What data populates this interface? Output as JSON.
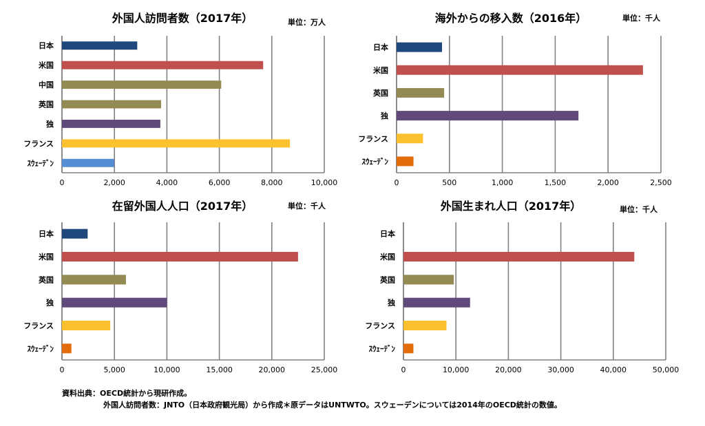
{
  "colors": {
    "日本": "#1F497D",
    "米国": "#C0504D",
    "中国": "#948A54",
    "英国": "#948A54",
    "独": "#604A7B",
    "フランス": "#FCC12E",
    "スウェーデン": "#E46C0A",
    "スウェーデン_visitors": "#558ED5"
  },
  "chart_data": [
    {
      "type": "bar",
      "orientation": "horizontal",
      "title": "外国人訪問者数（2017年）",
      "unit": "単位：万人",
      "categories": [
        "日本",
        "米国",
        "中国",
        "英国",
        "独",
        "フランス",
        "ｽｳｪｰﾃﾞﾝ"
      ],
      "values": [
        2870,
        7670,
        6070,
        3780,
        3750,
        8690,
        1990
      ],
      "xlim": [
        0,
        10000
      ],
      "xticks": [
        0,
        2000,
        4000,
        6000,
        8000,
        10000
      ],
      "xtick_labels": [
        "0",
        "2,000",
        "4,000",
        "6,000",
        "8,000",
        "10,000"
      ],
      "grid": true
    },
    {
      "type": "bar",
      "orientation": "horizontal",
      "title": "海外からの移入数（2016年）",
      "unit": "単位：千人",
      "categories": [
        "日本",
        "米国",
        "英国",
        "独",
        "フランス",
        "ｽｳｪｰﾃﾞﾝ"
      ],
      "values": [
        430,
        2330,
        450,
        1720,
        250,
        160
      ],
      "xlim": [
        0,
        2500
      ],
      "xticks": [
        0,
        500,
        1000,
        1500,
        2000,
        2500
      ],
      "xtick_labels": [
        "0",
        "500",
        "1,000",
        "1,500",
        "2,000",
        "2,500"
      ],
      "grid": true
    },
    {
      "type": "bar",
      "orientation": "horizontal",
      "title": "在留外国人人口（2017年）",
      "unit": "単位：千人",
      "categories": [
        "日本",
        "米国",
        "英国",
        "独",
        "フランス",
        "ｽｳｪｰﾃﾞﾝ"
      ],
      "values": [
        2450,
        22500,
        6100,
        10000,
        4600,
        900
      ],
      "xlim": [
        0,
        25000
      ],
      "xticks": [
        0,
        5000,
        10000,
        15000,
        20000,
        25000
      ],
      "xtick_labels": [
        "0",
        "5,000",
        "10,000",
        "15,000",
        "20,000",
        "25,000"
      ],
      "grid": true
    },
    {
      "type": "bar",
      "orientation": "horizontal",
      "title": "外国生まれ人口（2017年）",
      "unit": "単位：千人",
      "categories": [
        "日本",
        "米国",
        "英国",
        "独",
        "フランス",
        "ｽｳｪｰﾃﾞﾝ"
      ],
      "values": [
        0,
        44000,
        9600,
        12700,
        8200,
        1900
      ],
      "xlim": [
        0,
        50000
      ],
      "xticks": [
        0,
        10000,
        20000,
        30000,
        40000,
        50000
      ],
      "xtick_labels": [
        "0",
        "10,000",
        "20,000",
        "30,000",
        "40,000",
        "50,000"
      ],
      "grid": true
    }
  ],
  "notes": {
    "line1": "資料出典：OECD統計から現研作成。",
    "line2": "外国人訪問者数：JNTO（日本政府観光局）から作成＊原データはUNTWTO。スウェーデンについては2014年のOECD統計の数値。"
  }
}
